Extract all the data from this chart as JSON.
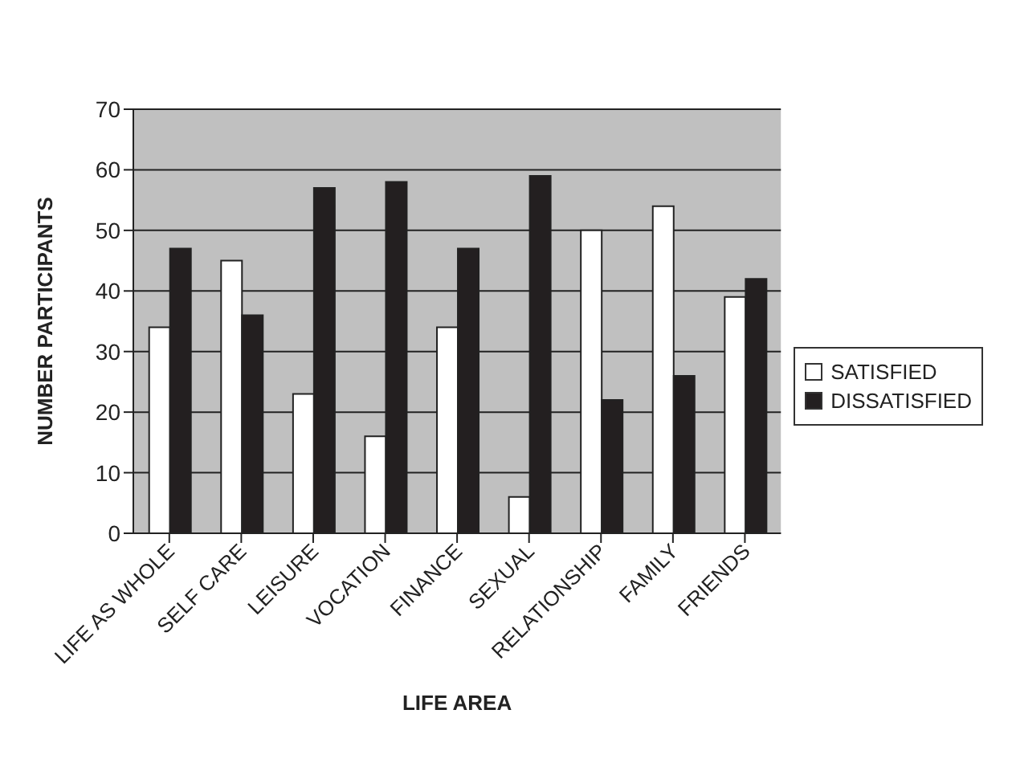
{
  "chart_data": {
    "type": "bar",
    "xlabel": "LIFE AREA",
    "ylabel": "NUMBER PARTICIPANTS",
    "categories": [
      "LIFE AS WHOLE",
      "SELF CARE",
      "LEISURE",
      "VOCATION",
      "FINANCE",
      "SEXUAL",
      "RELATIONSHIP",
      "FAMILY",
      "FRIENDS"
    ],
    "series": [
      {
        "name": "SATISFIED",
        "color": "#ffffff",
        "values": [
          34,
          45,
          23,
          16,
          34,
          6,
          50,
          54,
          39
        ]
      },
      {
        "name": "DISSATISFIED",
        "color": "#231f20",
        "values": [
          47,
          36,
          57,
          58,
          47,
          59,
          22,
          26,
          42
        ]
      }
    ],
    "ylim": [
      0,
      70
    ],
    "yticks": [
      0,
      10,
      20,
      30,
      40,
      50,
      60,
      70
    ],
    "grid": "y",
    "legend": "right"
  }
}
